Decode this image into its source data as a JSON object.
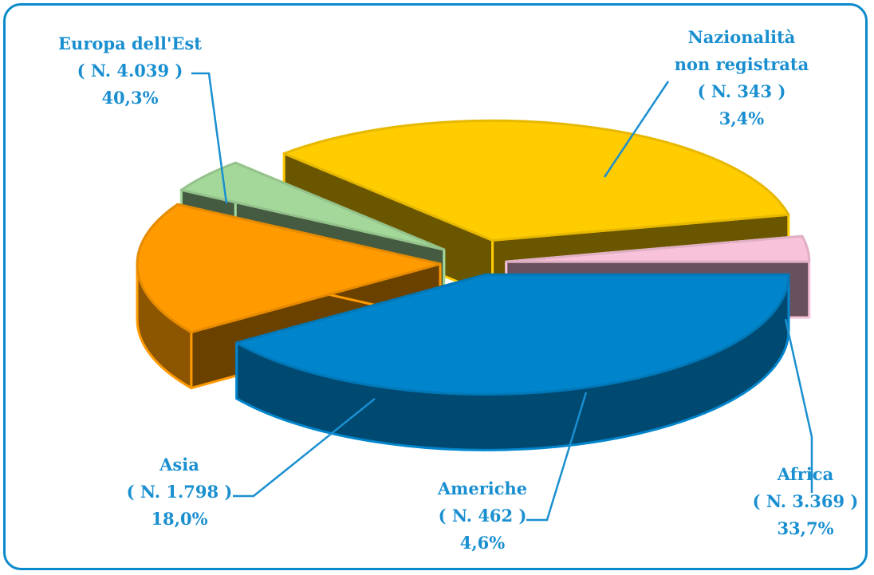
{
  "chart_data": {
    "type": "pie",
    "slices": [
      {
        "label": "Europa dell'Est",
        "count_text": "( N. 4.039 )",
        "value": 4039,
        "percent_text": "40,3%",
        "color": "#0085CC"
      },
      {
        "label": "Asia",
        "count_text": "( N. 1.798 )",
        "value": 1798,
        "percent_text": "18,0%",
        "color": "#FF9A00"
      },
      {
        "label": "Americhe",
        "count_text": "( N. 462 )",
        "value": 462,
        "percent_text": "4,6%",
        "color": "#A4D89A"
      },
      {
        "label": "Africa",
        "count_text": "( N. 3.369 )",
        "value": 3369,
        "percent_text": "33,7%",
        "color": "#FFCC00"
      },
      {
        "label": "Nazionalità non registrata",
        "label_lines": [
          "Nazionalità",
          "non registrata"
        ],
        "count_text": "( N. 343 )",
        "value": 343,
        "percent_text": "3,4%",
        "color": "#F8C2DA"
      }
    ],
    "label_color": "#1A8FD0",
    "legend": "none"
  }
}
